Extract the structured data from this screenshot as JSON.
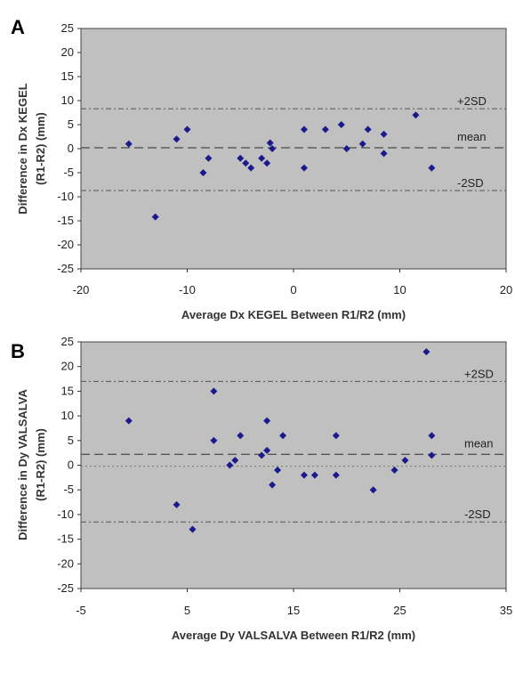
{
  "chart_data": [
    {
      "type": "scatter",
      "panel": "A",
      "xlabel": "Average Dx KEGEL Between R1/R2 (mm)",
      "ylabel": [
        "Difference in Dx KEGEL",
        "(R1-R2) (mm)"
      ],
      "xlim": [
        -20,
        20
      ],
      "ylim": [
        -25,
        25
      ],
      "xticks": [
        -20,
        -10,
        0,
        10,
        20
      ],
      "yticks": [
        25,
        20,
        15,
        10,
        5,
        0,
        -5,
        -10,
        -15,
        -20,
        -25
      ],
      "grid": false,
      "background": "#c0c0c0",
      "marker_color": "#1a1a8c",
      "reference_lines": [
        {
          "label": "+2SD",
          "y": 8.3,
          "style": "dashdot"
        },
        {
          "label": "mean",
          "y": 0.2,
          "style": "dashed"
        },
        {
          "label": "-2SD",
          "y": -8.7,
          "style": "dashdot"
        }
      ],
      "points": [
        [
          -15.5,
          1
        ],
        [
          -13,
          -14.2
        ],
        [
          -11,
          2
        ],
        [
          -10,
          4
        ],
        [
          -8.5,
          -5
        ],
        [
          -8,
          -2
        ],
        [
          -5,
          -2
        ],
        [
          -4.5,
          -3
        ],
        [
          -4,
          -4
        ],
        [
          -3,
          -2
        ],
        [
          -2.5,
          -3
        ],
        [
          -2.2,
          1.2
        ],
        [
          -2,
          0
        ],
        [
          1,
          4
        ],
        [
          1,
          -4
        ],
        [
          3,
          4
        ],
        [
          4.5,
          5
        ],
        [
          5,
          0
        ],
        [
          6.5,
          1
        ],
        [
          7,
          4
        ],
        [
          8.5,
          3
        ],
        [
          8.5,
          -1
        ],
        [
          11.5,
          7
        ],
        [
          13,
          -4
        ]
      ]
    },
    {
      "type": "scatter",
      "panel": "B",
      "xlabel": "Average Dy VALSALVA Between R1/R2 (mm)",
      "ylabel": [
        "Difference in Dy VALSALVA",
        "(R1-R2) (mm)"
      ],
      "xlim": [
        -5,
        35
      ],
      "ylim": [
        -25,
        25
      ],
      "xticks": [
        -5,
        5,
        15,
        25,
        35
      ],
      "yticks": [
        25,
        20,
        15,
        10,
        5,
        0,
        -5,
        -10,
        -15,
        -20,
        -25
      ],
      "grid": false,
      "background": "#c0c0c0",
      "marker_color": "#1a1a8c",
      "reference_lines": [
        {
          "label": "+2SD",
          "y": 17,
          "style": "dashdot"
        },
        {
          "label": "mean",
          "y": 2.2,
          "style": "dashed"
        },
        {
          "label": "",
          "y": -0.2,
          "style": "dotted"
        },
        {
          "label": "-2SD",
          "y": -11.5,
          "style": "dashdot"
        }
      ],
      "points": [
        [
          -0.5,
          9
        ],
        [
          4,
          -8
        ],
        [
          5.5,
          -13
        ],
        [
          7.5,
          15
        ],
        [
          7.5,
          5
        ],
        [
          9,
          0
        ],
        [
          9.5,
          1
        ],
        [
          10,
          6
        ],
        [
          12,
          2
        ],
        [
          12.5,
          9
        ],
        [
          12.5,
          3
        ],
        [
          13,
          -4
        ],
        [
          13.5,
          -1
        ],
        [
          14,
          6
        ],
        [
          16,
          -2
        ],
        [
          17,
          -2
        ],
        [
          19,
          6
        ],
        [
          19,
          -2
        ],
        [
          22.5,
          -5
        ],
        [
          24.5,
          -1
        ],
        [
          25.5,
          1
        ],
        [
          27.5,
          23
        ],
        [
          28,
          6
        ],
        [
          28,
          2
        ]
      ]
    }
  ]
}
